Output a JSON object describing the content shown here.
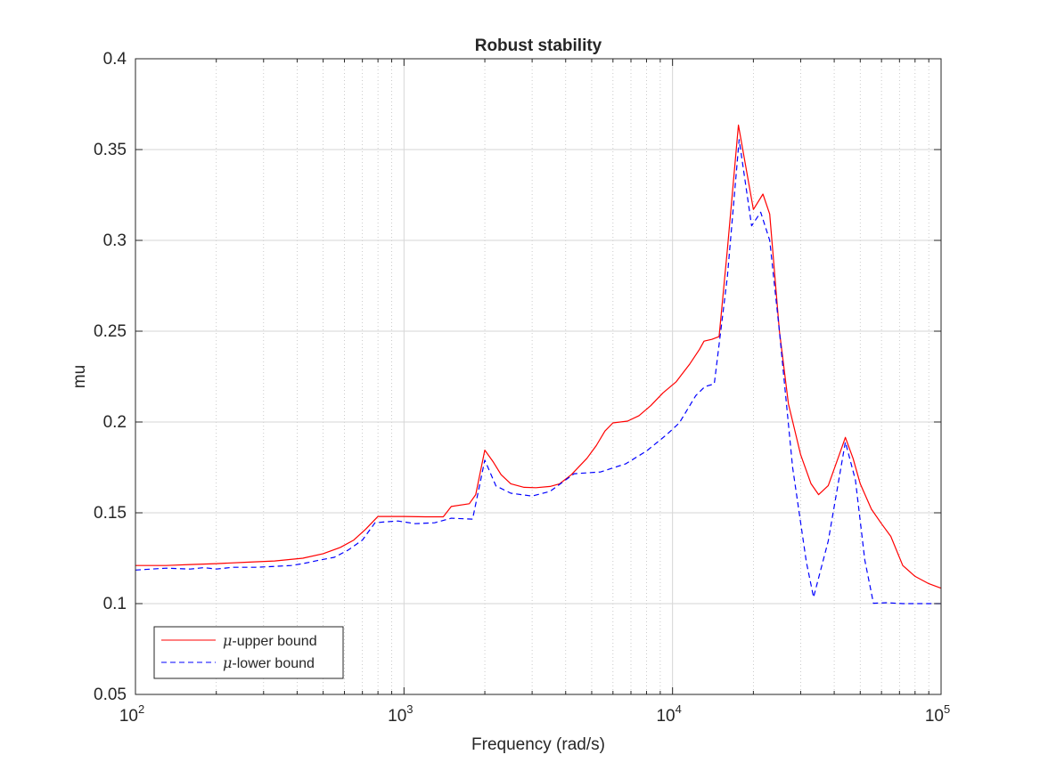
{
  "chart_data": {
    "type": "line",
    "title": "Robust stability",
    "xlabel": "Frequency (rad/s)",
    "ylabel": "mu",
    "xscale": "log",
    "xlim": [
      100,
      100000
    ],
    "ylim": [
      0.05,
      0.4
    ],
    "xtick_exponents": [
      "2",
      "3",
      "4",
      "5"
    ],
    "xtick_base": "10",
    "yticks": [
      "0.05",
      "0.1",
      "0.15",
      "0.2",
      "0.25",
      "0.3",
      "0.35",
      "0.4"
    ],
    "grid": true,
    "legend_position": "bottom-left",
    "series": [
      {
        "name": "μ-upper bound",
        "legend_symbol": "μ",
        "legend_text": "-upper bound",
        "color": "#ff0000",
        "dash": "solid",
        "points": [
          [
            100,
            0.121
          ],
          [
            130,
            0.121
          ],
          [
            160,
            0.1215
          ],
          [
            200,
            0.122
          ],
          [
            260,
            0.1228
          ],
          [
            330,
            0.1235
          ],
          [
            420,
            0.125
          ],
          [
            500,
            0.1275
          ],
          [
            580,
            0.131
          ],
          [
            650,
            0.135
          ],
          [
            720,
            0.141
          ],
          [
            800,
            0.148
          ],
          [
            900,
            0.148
          ],
          [
            1000,
            0.148
          ],
          [
            1200,
            0.1478
          ],
          [
            1400,
            0.1478
          ],
          [
            1500,
            0.1535
          ],
          [
            1750,
            0.155
          ],
          [
            1850,
            0.16
          ],
          [
            2000,
            0.1845
          ],
          [
            2150,
            0.178
          ],
          [
            2300,
            0.171
          ],
          [
            2500,
            0.166
          ],
          [
            2800,
            0.164
          ],
          [
            3100,
            0.1638
          ],
          [
            3500,
            0.1645
          ],
          [
            3800,
            0.166
          ],
          [
            4200,
            0.171
          ],
          [
            4800,
            0.18
          ],
          [
            5200,
            0.187
          ],
          [
            5600,
            0.195
          ],
          [
            6000,
            0.1995
          ],
          [
            6800,
            0.2005
          ],
          [
            7500,
            0.2035
          ],
          [
            8300,
            0.209
          ],
          [
            9200,
            0.216
          ],
          [
            10300,
            0.222
          ],
          [
            11600,
            0.232
          ],
          [
            12600,
            0.24
          ],
          [
            13100,
            0.2445
          ],
          [
            14000,
            0.2455
          ],
          [
            14900,
            0.247
          ],
          [
            16000,
            0.295
          ],
          [
            17600,
            0.3635
          ],
          [
            20000,
            0.317
          ],
          [
            21700,
            0.3255
          ],
          [
            23000,
            0.3145
          ],
          [
            25000,
            0.25
          ],
          [
            27000,
            0.21
          ],
          [
            30000,
            0.182
          ],
          [
            32800,
            0.166
          ],
          [
            35000,
            0.16
          ],
          [
            38000,
            0.165
          ],
          [
            42000,
            0.183
          ],
          [
            44000,
            0.1915
          ],
          [
            47000,
            0.18
          ],
          [
            50000,
            0.166
          ],
          [
            55000,
            0.152
          ],
          [
            60000,
            0.144
          ],
          [
            65000,
            0.137
          ],
          [
            72000,
            0.121
          ],
          [
            80000,
            0.115
          ],
          [
            90000,
            0.111
          ],
          [
            100000,
            0.1085
          ]
        ]
      },
      {
        "name": "μ-lower bound",
        "legend_symbol": "μ",
        "legend_text": "-lower bound",
        "color": "#0000ff",
        "dash": "dashed",
        "points": [
          [
            100,
            0.1185
          ],
          [
            130,
            0.1195
          ],
          [
            160,
            0.119
          ],
          [
            180,
            0.1198
          ],
          [
            200,
            0.119
          ],
          [
            230,
            0.12
          ],
          [
            280,
            0.12
          ],
          [
            330,
            0.1205
          ],
          [
            380,
            0.121
          ],
          [
            420,
            0.122
          ],
          [
            480,
            0.1238
          ],
          [
            550,
            0.1255
          ],
          [
            620,
            0.1295
          ],
          [
            700,
            0.135
          ],
          [
            780,
            0.1445
          ],
          [
            850,
            0.145
          ],
          [
            950,
            0.1455
          ],
          [
            1100,
            0.144
          ],
          [
            1300,
            0.1445
          ],
          [
            1500,
            0.147
          ],
          [
            1800,
            0.1465
          ],
          [
            2000,
            0.179
          ],
          [
            2200,
            0.1648
          ],
          [
            2500,
            0.1608
          ],
          [
            3000,
            0.1592
          ],
          [
            3500,
            0.1618
          ],
          [
            4300,
            0.1715
          ],
          [
            5400,
            0.1725
          ],
          [
            6700,
            0.177
          ],
          [
            8000,
            0.184
          ],
          [
            9500,
            0.193
          ],
          [
            10600,
            0.1995
          ],
          [
            12200,
            0.2145
          ],
          [
            13200,
            0.2195
          ],
          [
            14300,
            0.221
          ],
          [
            16000,
            0.28
          ],
          [
            17700,
            0.3555
          ],
          [
            19700,
            0.308
          ],
          [
            21300,
            0.3155
          ],
          [
            23000,
            0.3
          ],
          [
            25000,
            0.25
          ],
          [
            28000,
            0.175
          ],
          [
            31500,
            0.123
          ],
          [
            33500,
            0.1035
          ],
          [
            38000,
            0.1345
          ],
          [
            44000,
            0.189
          ],
          [
            48000,
            0.168
          ],
          [
            52000,
            0.124
          ],
          [
            56000,
            0.1002
          ],
          [
            63000,
            0.1005
          ],
          [
            72000,
            0.1
          ],
          [
            80000,
            0.1
          ],
          [
            100000,
            0.1
          ]
        ]
      }
    ]
  }
}
